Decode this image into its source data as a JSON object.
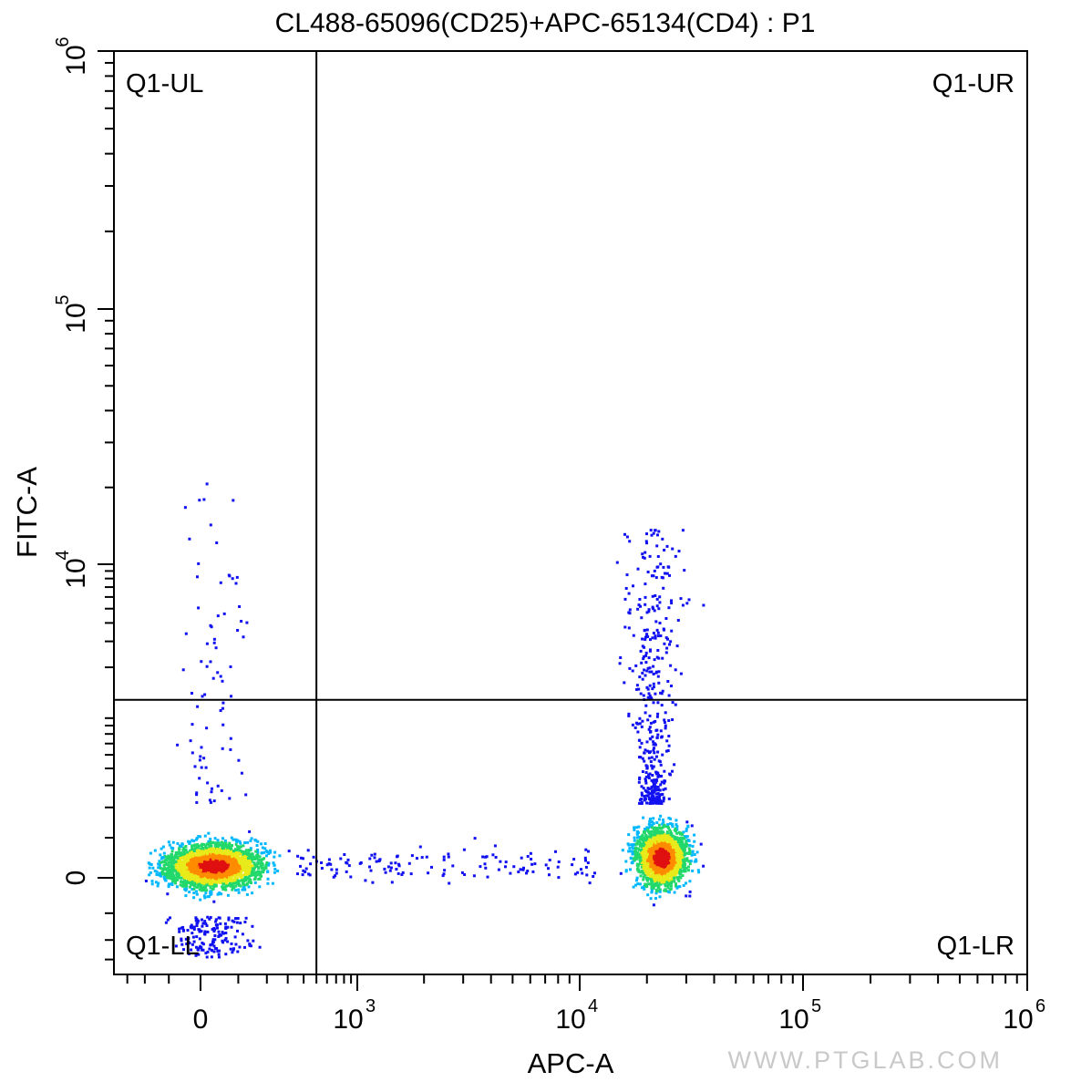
{
  "chart_data": {
    "type": "scatter",
    "subtype": "flow-cytometry density dot plot",
    "title": "CL488-65096(CD25)+APC-65134(CD4) : P1",
    "xlabel": "APC-A",
    "ylabel": "FITC-A",
    "x_scale": "biexponential (linear near 0, log above)",
    "y_scale": "biexponential (linear near 0, log above)",
    "xlim": [
      -400,
      1000000
    ],
    "ylim": [
      -400,
      1000000
    ],
    "x_ticks": [
      {
        "base": "0",
        "exp": "",
        "value": 0
      },
      {
        "base": "10",
        "exp": "3",
        "value": 1000
      },
      {
        "base": "10",
        "exp": "4",
        "value": 10000
      },
      {
        "base": "10",
        "exp": "5",
        "value": 100000
      },
      {
        "base": "10",
        "exp": "6",
        "value": 1000000
      }
    ],
    "y_ticks": [
      {
        "base": "0",
        "exp": "",
        "value": 0
      },
      {
        "base": "10",
        "exp": "4",
        "value": 10000
      },
      {
        "base": "10",
        "exp": "5",
        "value": 100000
      },
      {
        "base": "10",
        "exp": "6",
        "value": 1000000
      }
    ],
    "gate": {
      "x_threshold": 500,
      "y_threshold": 1200
    },
    "quadrants": [
      "Q1-UL",
      "Q1-UR",
      "Q1-LL",
      "Q1-LR"
    ],
    "populations": [
      {
        "name": "CD4-negative (Q1-LL)",
        "x_center": 30,
        "y_center": 30,
        "approx_share": 0.55
      },
      {
        "name": "CD4-positive (Q1-LR)",
        "x_center": 23000,
        "y_center": 50,
        "approx_share": 0.43
      },
      {
        "name": "CD4-positive, FITC-high tail (Q1-UR)",
        "x_center": 23000,
        "y_center": 3000,
        "approx_share": 0.02
      }
    ],
    "density_colors": [
      "#1010f0",
      "#00b8ff",
      "#22d86a",
      "#e8ea1a",
      "#ff8c00",
      "#e01010"
    ],
    "grid": false,
    "legend": "none"
  },
  "watermark": "WWW.PTGLAB.COM"
}
